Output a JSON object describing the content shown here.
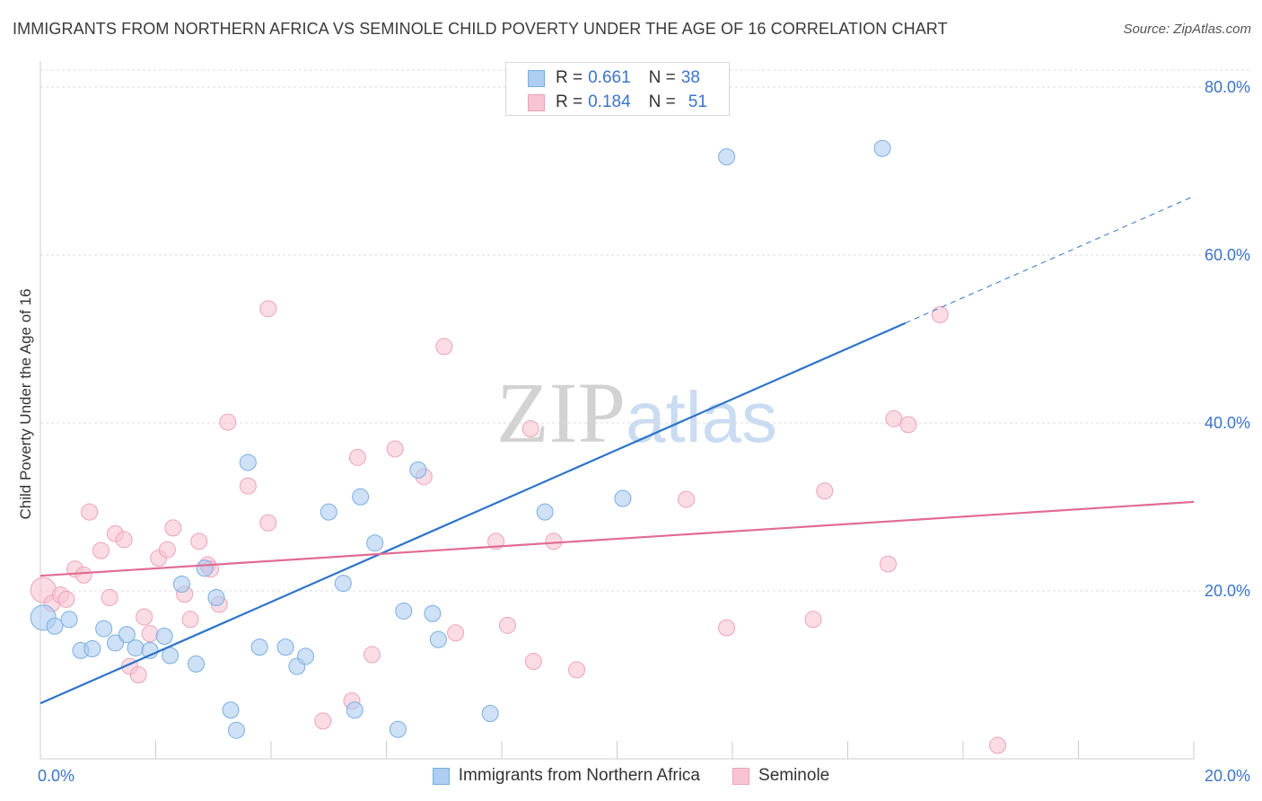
{
  "header": {
    "title": "IMMIGRANTS FROM NORTHERN AFRICA VS SEMINOLE CHILD POVERTY UNDER THE AGE OF 16 CORRELATION CHART",
    "source": "Source: ZipAtlas.com"
  },
  "watermark": {
    "zip": "ZIP",
    "atlas": "atlas"
  },
  "colors": {
    "blue_fill": "#aecdf2",
    "blue_stroke": "#7aaee0",
    "blue_line": "#2f74c9",
    "pink_fill": "#f8c4d4",
    "pink_stroke": "#eda2ba",
    "pink_line": "#e06c93",
    "axis_text": "#3a74c9",
    "grid": "#dddddd"
  },
  "legend": {
    "r_label": "R =",
    "n_label": "N =",
    "series": [
      {
        "r": "0.661",
        "n": "38"
      },
      {
        "r": "0.184",
        "n": "51"
      }
    ]
  },
  "chart_data": {
    "type": "scatter",
    "title": "IMMIGRANTS FROM NORTHERN AFRICA VS SEMINOLE CHILD POVERTY UNDER THE AGE OF 16 CORRELATION CHART",
    "xlabel": "",
    "ylabel": "Child Poverty Under the Age of 16",
    "xlim": [
      0,
      20
    ],
    "ylim": [
      0,
      80
    ],
    "x_ticks": [
      "0.0%",
      "20.0%"
    ],
    "y_ticks": [
      "20.0%",
      "40.0%",
      "60.0%",
      "80.0%"
    ],
    "grid": true,
    "legend_position": "top-center and bottom",
    "series": [
      {
        "name": "Immigrants from Northern Africa",
        "color": "#aecdf2",
        "r": 0.661,
        "n": 38,
        "trend": {
          "x": [
            0,
            15
          ],
          "y": [
            6.6,
            51.9
          ],
          "dashed_to": [
            20,
            67.0
          ]
        },
        "points": [
          [
            0.05,
            16.8
          ],
          [
            0.25,
            15.8
          ],
          [
            0.5,
            16.6
          ],
          [
            0.7,
            12.9
          ],
          [
            0.9,
            13.1
          ],
          [
            1.1,
            15.5
          ],
          [
            1.3,
            13.8
          ],
          [
            1.5,
            14.8
          ],
          [
            1.65,
            13.2
          ],
          [
            1.9,
            12.9
          ],
          [
            2.15,
            14.6
          ],
          [
            2.25,
            12.3
          ],
          [
            2.45,
            20.8
          ],
          [
            2.7,
            11.3
          ],
          [
            2.85,
            22.7
          ],
          [
            3.05,
            19.2
          ],
          [
            3.3,
            5.8
          ],
          [
            3.4,
            3.4
          ],
          [
            3.6,
            35.3
          ],
          [
            3.8,
            13.3
          ],
          [
            4.25,
            13.3
          ],
          [
            4.45,
            11.0
          ],
          [
            4.6,
            12.2
          ],
          [
            5.0,
            29.4
          ],
          [
            5.25,
            20.9
          ],
          [
            5.45,
            5.8
          ],
          [
            5.55,
            31.2
          ],
          [
            5.8,
            25.7
          ],
          [
            6.2,
            3.5
          ],
          [
            6.3,
            17.6
          ],
          [
            6.55,
            34.4
          ],
          [
            6.8,
            17.3
          ],
          [
            6.9,
            14.2
          ],
          [
            7.8,
            5.4
          ],
          [
            8.75,
            29.4
          ],
          [
            10.1,
            31.0
          ],
          [
            11.9,
            71.7
          ],
          [
            14.6,
            72.7
          ]
        ]
      },
      {
        "name": "Seminole",
        "color": "#f8c4d4",
        "r": 0.184,
        "n": 51,
        "trend": {
          "x": [
            0,
            20
          ],
          "y": [
            21.8,
            30.6
          ]
        },
        "points": [
          [
            0.05,
            20.1
          ],
          [
            0.2,
            18.5
          ],
          [
            0.35,
            19.5
          ],
          [
            0.45,
            19.0
          ],
          [
            0.6,
            22.6
          ],
          [
            0.75,
            21.9
          ],
          [
            0.85,
            29.4
          ],
          [
            1.05,
            24.8
          ],
          [
            1.2,
            19.2
          ],
          [
            1.3,
            26.8
          ],
          [
            1.45,
            26.1
          ],
          [
            1.55,
            11.0
          ],
          [
            1.7,
            10.0
          ],
          [
            1.8,
            16.9
          ],
          [
            1.9,
            14.9
          ],
          [
            2.05,
            23.9
          ],
          [
            2.2,
            24.9
          ],
          [
            2.3,
            27.5
          ],
          [
            2.5,
            19.6
          ],
          [
            2.6,
            16.6
          ],
          [
            2.75,
            25.9
          ],
          [
            2.9,
            23.1
          ],
          [
            2.95,
            22.6
          ],
          [
            3.1,
            18.4
          ],
          [
            3.25,
            40.1
          ],
          [
            3.6,
            32.5
          ],
          [
            3.95,
            28.1
          ],
          [
            3.95,
            53.6
          ],
          [
            4.9,
            4.5
          ],
          [
            5.4,
            6.9
          ],
          [
            5.5,
            35.9
          ],
          [
            5.75,
            12.4
          ],
          [
            6.15,
            36.9
          ],
          [
            6.65,
            33.6
          ],
          [
            7.0,
            49.1
          ],
          [
            7.2,
            15.0
          ],
          [
            7.9,
            25.9
          ],
          [
            8.1,
            15.9
          ],
          [
            8.5,
            39.3
          ],
          [
            8.55,
            11.6
          ],
          [
            8.9,
            25.9
          ],
          [
            9.3,
            10.6
          ],
          [
            11.2,
            30.9
          ],
          [
            11.9,
            15.6
          ],
          [
            13.4,
            16.6
          ],
          [
            13.6,
            31.9
          ],
          [
            14.7,
            23.2
          ],
          [
            14.8,
            40.5
          ],
          [
            15.05,
            39.8
          ],
          [
            15.6,
            52.9
          ],
          [
            16.6,
            1.6
          ]
        ]
      }
    ]
  }
}
